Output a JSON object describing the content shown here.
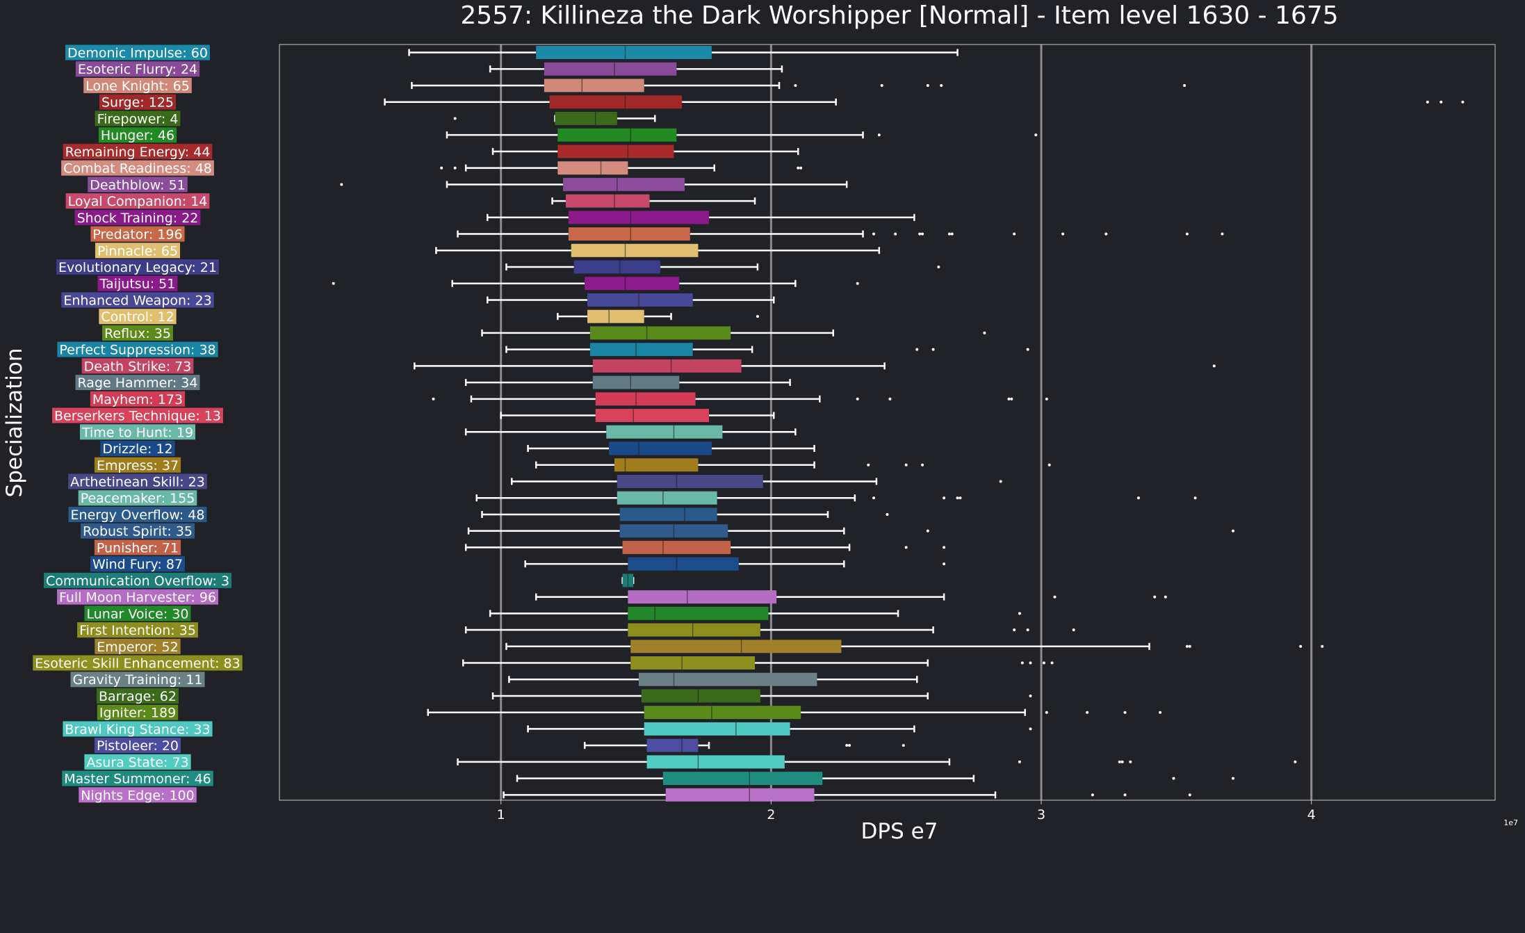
{
  "colors": {
    "background": "#202227",
    "axis": "#c8c8c8",
    "grid": "#8c8c8c",
    "whisker": "#ffffff",
    "text": "#ffffff"
  },
  "chart_data": {
    "type": "box",
    "title": "2557: Killineza the Dark Worshipper [Normal] - Item level 1630 - 1675",
    "xlabel": "DPS e7",
    "ylabel": "Specialization",
    "x_offset_label": "1e7",
    "xlim": [
      0.18,
      4.68
    ],
    "xticks": [
      1,
      2,
      3,
      4
    ],
    "grid": "vertical",
    "series": [
      {
        "label": "Demonic Impulse: 60",
        "color": "#1a8aa8",
        "whislo": 0.66,
        "q1": 1.13,
        "med": 1.46,
        "q3": 1.78,
        "whishi": 2.69,
        "fliers": []
      },
      {
        "label": "Esoteric Flurry: 24",
        "color": "#8a4a9a",
        "whislo": 0.96,
        "q1": 1.16,
        "med": 1.42,
        "q3": 1.65,
        "whishi": 2.04,
        "fliers": []
      },
      {
        "label": "Lone Knight: 65",
        "color": "#d08878",
        "whislo": 0.67,
        "q1": 1.16,
        "med": 1.3,
        "q3": 1.53,
        "whishi": 2.03,
        "fliers": [
          2.09,
          2.41,
          2.58,
          2.63,
          3.53
        ]
      },
      {
        "label": "Surge: 125",
        "color": "#a02828",
        "whislo": 0.57,
        "q1": 1.18,
        "med": 1.46,
        "q3": 1.67,
        "whishi": 2.24,
        "fliers": [
          4.43,
          4.48,
          4.56
        ]
      },
      {
        "label": "Firepower: 4",
        "color": "#3a6a1a",
        "whislo": 1.2,
        "q1": 1.2,
        "med": 1.35,
        "q3": 1.43,
        "whishi": 1.57,
        "fliers": [
          0.83
        ]
      },
      {
        "label": "Hunger: 46",
        "color": "#228a22",
        "whislo": 0.8,
        "q1": 1.21,
        "med": 1.48,
        "q3": 1.65,
        "whishi": 2.34,
        "fliers": [
          2.4,
          2.98
        ]
      },
      {
        "label": "Remaining Energy: 44",
        "color": "#a82a2a",
        "whislo": 0.97,
        "q1": 1.21,
        "med": 1.47,
        "q3": 1.64,
        "whishi": 2.1,
        "fliers": []
      },
      {
        "label": "Combat Readiness: 48",
        "color": "#d48c80",
        "whislo": 0.87,
        "q1": 1.21,
        "med": 1.37,
        "q3": 1.47,
        "whishi": 1.79,
        "fliers": [
          0.78,
          0.83,
          2.1,
          2.11
        ]
      },
      {
        "label": "Deathblow: 51",
        "color": "#8c4c9c",
        "whislo": 0.8,
        "q1": 1.23,
        "med": 1.43,
        "q3": 1.68,
        "whishi": 2.28,
        "fliers": [
          0.41
        ]
      },
      {
        "label": "Loyal Companion: 14",
        "color": "#c84a6a",
        "whislo": 1.19,
        "q1": 1.24,
        "med": 1.42,
        "q3": 1.55,
        "whishi": 1.94,
        "fliers": []
      },
      {
        "label": "Shock Training: 22",
        "color": "#8a1a8a",
        "whislo": 0.95,
        "q1": 1.25,
        "med": 1.48,
        "q3": 1.77,
        "whishi": 2.53,
        "fliers": []
      },
      {
        "label": "Predator: 196",
        "color": "#c86848",
        "whislo": 0.84,
        "q1": 1.25,
        "med": 1.48,
        "q3": 1.7,
        "whishi": 2.34,
        "fliers": [
          2.38,
          2.46,
          2.55,
          2.56,
          2.66,
          2.67,
          2.9,
          3.08,
          3.24,
          3.54,
          3.67
        ]
      },
      {
        "label": "Pinnacle: 65",
        "color": "#e0c070",
        "whislo": 0.76,
        "q1": 1.26,
        "med": 1.46,
        "q3": 1.73,
        "whishi": 2.4,
        "fliers": []
      },
      {
        "label": "Evolutionary Legacy: 21",
        "color": "#3c3c88",
        "whislo": 1.02,
        "q1": 1.27,
        "med": 1.44,
        "q3": 1.59,
        "whishi": 1.95,
        "fliers": [
          2.62
        ]
      },
      {
        "label": "Taijutsu: 51",
        "color": "#8c1a8c",
        "whislo": 0.82,
        "q1": 1.31,
        "med": 1.46,
        "q3": 1.66,
        "whishi": 2.09,
        "fliers": [
          0.38,
          2.32
        ]
      },
      {
        "label": "Enhanced Weapon: 23",
        "color": "#484898",
        "whislo": 0.95,
        "q1": 1.32,
        "med": 1.51,
        "q3": 1.71,
        "whishi": 2.01,
        "fliers": []
      },
      {
        "label": "Control: 12",
        "color": "#e0c070",
        "whislo": 1.21,
        "q1": 1.32,
        "med": 1.4,
        "q3": 1.53,
        "whishi": 1.63,
        "fliers": [
          1.95
        ]
      },
      {
        "label": "Reflux: 35",
        "color": "#5a8a1a",
        "whislo": 0.93,
        "q1": 1.33,
        "med": 1.54,
        "q3": 1.85,
        "whishi": 2.23,
        "fliers": [
          2.79
        ]
      },
      {
        "label": "Perfect Suppression: 38",
        "color": "#1a84a4",
        "whislo": 1.02,
        "q1": 1.33,
        "med": 1.5,
        "q3": 1.71,
        "whishi": 1.93,
        "fliers": [
          2.54,
          2.6,
          2.95
        ]
      },
      {
        "label": "Death Strike: 73",
        "color": "#c44262",
        "whislo": 0.68,
        "q1": 1.34,
        "med": 1.63,
        "q3": 1.89,
        "whishi": 2.42,
        "fliers": [
          3.64
        ]
      },
      {
        "label": "Rage Hammer: 34",
        "color": "#607a86",
        "whislo": 0.87,
        "q1": 1.34,
        "med": 1.48,
        "q3": 1.66,
        "whishi": 2.07,
        "fliers": []
      },
      {
        "label": "Mayhem: 173",
        "color": "#d23c54",
        "whislo": 0.89,
        "q1": 1.35,
        "med": 1.5,
        "q3": 1.72,
        "whishi": 2.18,
        "fliers": [
          0.75,
          2.32,
          2.44,
          2.88,
          2.89,
          3.02
        ]
      },
      {
        "label": "Berserkers Technique: 13",
        "color": "#d8425a",
        "whislo": 1.0,
        "q1": 1.35,
        "med": 1.49,
        "q3": 1.77,
        "whishi": 2.01,
        "fliers": []
      },
      {
        "label": "Time to Hunt: 19",
        "color": "#6ab8a8",
        "whislo": 0.87,
        "q1": 1.39,
        "med": 1.64,
        "q3": 1.82,
        "whishi": 2.09,
        "fliers": []
      },
      {
        "label": "Drizzle: 12",
        "color": "#1a4a8a",
        "whislo": 1.1,
        "q1": 1.4,
        "med": 1.51,
        "q3": 1.78,
        "whishi": 2.16,
        "fliers": []
      },
      {
        "label": "Empress: 37",
        "color": "#a07c1c",
        "whislo": 1.13,
        "q1": 1.42,
        "med": 1.46,
        "q3": 1.73,
        "whishi": 2.16,
        "fliers": [
          2.36,
          2.5,
          2.56,
          3.03
        ]
      },
      {
        "label": "Arthetinean Skill: 23",
        "color": "#484888",
        "whislo": 1.04,
        "q1": 1.43,
        "med": 1.65,
        "q3": 1.97,
        "whishi": 2.39,
        "fliers": [
          2.85
        ]
      },
      {
        "label": "Peacemaker: 155",
        "color": "#6ab8a8",
        "whislo": 0.91,
        "q1": 1.43,
        "med": 1.6,
        "q3": 1.8,
        "whishi": 2.31,
        "fliers": [
          2.38,
          2.64,
          2.69,
          2.7,
          3.36,
          3.57
        ]
      },
      {
        "label": "Energy Overflow: 48",
        "color": "#2a5a8a",
        "whislo": 0.93,
        "q1": 1.44,
        "med": 1.68,
        "q3": 1.8,
        "whishi": 2.21,
        "fliers": [
          2.43
        ]
      },
      {
        "label": "Robust Spirit: 35",
        "color": "#305a8c",
        "whislo": 0.88,
        "q1": 1.44,
        "med": 1.64,
        "q3": 1.84,
        "whishi": 2.27,
        "fliers": [
          2.58,
          3.71
        ]
      },
      {
        "label": "Punisher: 71",
        "color": "#c26248",
        "whislo": 0.87,
        "q1": 1.45,
        "med": 1.6,
        "q3": 1.85,
        "whishi": 2.29,
        "fliers": [
          2.5,
          2.64
        ]
      },
      {
        "label": "Wind Fury: 87",
        "color": "#1c4c8c",
        "whislo": 1.09,
        "q1": 1.47,
        "med": 1.65,
        "q3": 1.88,
        "whishi": 2.27,
        "fliers": [
          2.64
        ]
      },
      {
        "label": "Communication Overflow: 3",
        "color": "#1c7c78",
        "whislo": 1.45,
        "q1": 1.45,
        "med": 1.47,
        "q3": 1.49,
        "whishi": 1.49,
        "fliers": []
      },
      {
        "label": "Full Moon Harvester: 96",
        "color": "#b46cc4",
        "whislo": 1.13,
        "q1": 1.47,
        "med": 1.69,
        "q3": 2.02,
        "whishi": 2.64,
        "fliers": [
          3.05,
          3.42,
          3.46
        ]
      },
      {
        "label": "Lunar Voice: 30",
        "color": "#22882a",
        "whislo": 0.96,
        "q1": 1.47,
        "med": 1.57,
        "q3": 1.99,
        "whishi": 2.47,
        "fliers": [
          2.92
        ]
      },
      {
        "label": "First Intention: 35",
        "color": "#8e8e1e",
        "whislo": 0.87,
        "q1": 1.47,
        "med": 1.71,
        "q3": 1.96,
        "whishi": 2.6,
        "fliers": [
          2.9,
          2.95,
          3.12
        ]
      },
      {
        "label": "Emperor: 52",
        "color": "#a0802a",
        "whislo": 1.02,
        "q1": 1.48,
        "med": 1.89,
        "q3": 2.26,
        "whishi": 3.4,
        "fliers": [
          3.54,
          3.55,
          3.96,
          4.04
        ]
      },
      {
        "label": "Esoteric Skill Enhancement: 83",
        "color": "#8e901e",
        "whislo": 0.86,
        "q1": 1.48,
        "med": 1.67,
        "q3": 1.94,
        "whishi": 2.58,
        "fliers": [
          2.93,
          2.96,
          3.01,
          3.04
        ]
      },
      {
        "label": "Gravity Training: 11",
        "color": "#6a8286",
        "whislo": 1.03,
        "q1": 1.51,
        "med": 1.64,
        "q3": 2.17,
        "whishi": 2.54,
        "fliers": []
      },
      {
        "label": "Barrage: 62",
        "color": "#3a6a1a",
        "whislo": 0.97,
        "q1": 1.52,
        "med": 1.73,
        "q3": 1.96,
        "whishi": 2.58,
        "fliers": [
          2.96
        ]
      },
      {
        "label": "Igniter: 189",
        "color": "#5a8a1a",
        "whislo": 0.73,
        "q1": 1.53,
        "med": 1.78,
        "q3": 2.11,
        "whishi": 2.94,
        "fliers": [
          3.02,
          3.17,
          3.31,
          3.44
        ]
      },
      {
        "label": "Brawl King Stance: 33",
        "color": "#4ec8c0",
        "whislo": 1.1,
        "q1": 1.53,
        "med": 1.87,
        "q3": 2.07,
        "whishi": 2.53,
        "fliers": [
          2.96
        ]
      },
      {
        "label": "Pistoleer: 20",
        "color": "#4c4ca0",
        "whislo": 1.31,
        "q1": 1.54,
        "med": 1.67,
        "q3": 1.73,
        "whishi": 1.77,
        "fliers": [
          2.28,
          2.29,
          2.49
        ]
      },
      {
        "label": "Asura State: 73",
        "color": "#50ccc0",
        "whislo": 0.84,
        "q1": 1.54,
        "med": 1.73,
        "q3": 2.05,
        "whishi": 2.66,
        "fliers": [
          2.92,
          3.29,
          3.3,
          3.33,
          3.94
        ]
      },
      {
        "label": "Master Summoner: 46",
        "color": "#1e8c80",
        "whislo": 1.06,
        "q1": 1.6,
        "med": 1.92,
        "q3": 2.19,
        "whishi": 2.75,
        "fliers": [
          3.49,
          3.71
        ]
      },
      {
        "label": "Nights Edge: 100",
        "color": "#b870c8",
        "whislo": 1.01,
        "q1": 1.61,
        "med": 1.92,
        "q3": 2.16,
        "whishi": 2.83,
        "fliers": [
          3.19,
          3.31,
          3.55
        ]
      }
    ]
  }
}
